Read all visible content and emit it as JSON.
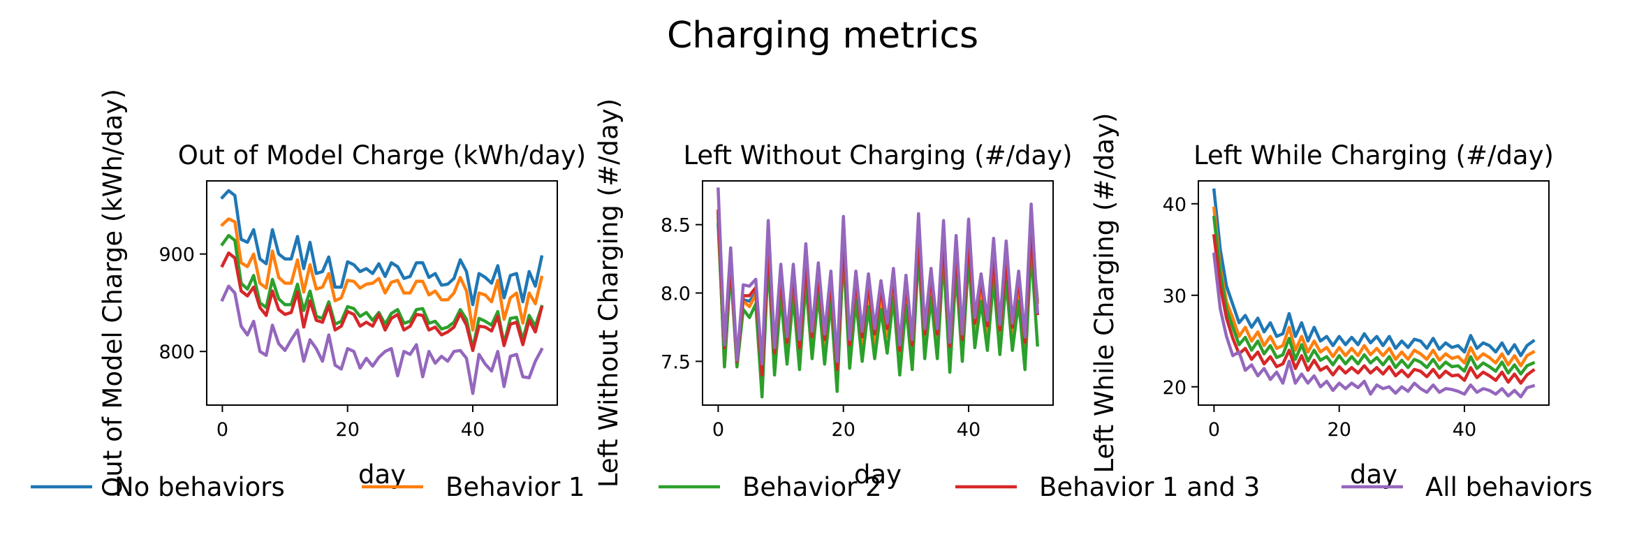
{
  "figure": {
    "title": "Charging metrics"
  },
  "legend": {
    "placement": "bottom-center",
    "entries": [
      {
        "name": "No behaviors",
        "color": "#1f77b4"
      },
      {
        "name": "Behavior 1",
        "color": "#ff7f0e"
      },
      {
        "name": "Behavior 2",
        "color": "#2ca02c"
      },
      {
        "name": "Behavior 1 and 3",
        "color": "#d62728"
      },
      {
        "name": "All behaviors",
        "color": "#9467bd"
      }
    ]
  },
  "chart_data": [
    {
      "type": "line",
      "title": "Out of Model Charge (kWh/day)",
      "xlabel": "day",
      "ylabel": "Out of Model Charge (kWh/day)",
      "xlim": [
        -2.5,
        53.5
      ],
      "ylim": [
        745,
        975
      ],
      "xticks": [
        0,
        20,
        40
      ],
      "yticks": [
        800,
        900
      ],
      "grid": false,
      "x": [
        0,
        1,
        2,
        3,
        4,
        5,
        6,
        7,
        8,
        9,
        10,
        11,
        12,
        13,
        14,
        15,
        16,
        17,
        18,
        19,
        20,
        21,
        22,
        23,
        24,
        25,
        26,
        27,
        28,
        29,
        30,
        31,
        32,
        33,
        34,
        35,
        36,
        37,
        38,
        39,
        40,
        41,
        42,
        43,
        44,
        45,
        46,
        47,
        48,
        49,
        50,
        51
      ],
      "series": [
        {
          "name": "No behaviors",
          "color": "#1f77b4",
          "values": [
            958,
            965,
            960,
            915,
            912,
            925,
            895,
            890,
            925,
            900,
            895,
            895,
            918,
            885,
            912,
            880,
            882,
            897,
            866,
            866,
            892,
            889,
            882,
            885,
            880,
            890,
            877,
            891,
            887,
            875,
            877,
            891,
            891,
            876,
            880,
            868,
            869,
            875,
            894,
            882,
            848,
            880,
            876,
            870,
            888,
            855,
            878,
            880,
            851,
            882,
            867,
            897
          ]
        },
        {
          "name": "Behavior 1",
          "color": "#ff7f0e",
          "values": [
            930,
            936,
            933,
            891,
            887,
            900,
            870,
            865,
            903,
            876,
            870,
            870,
            894,
            861,
            889,
            864,
            866,
            880,
            852,
            855,
            873,
            872,
            865,
            869,
            870,
            875,
            860,
            871,
            873,
            860,
            860,
            872,
            872,
            858,
            862,
            853,
            853,
            860,
            876,
            862,
            822,
            860,
            858,
            851,
            873,
            833,
            855,
            860,
            829,
            860,
            849,
            876
          ]
        },
        {
          "name": "Behavior 2",
          "color": "#2ca02c",
          "values": [
            910,
            919,
            914,
            870,
            864,
            878,
            850,
            845,
            874,
            854,
            848,
            848,
            869,
            842,
            862,
            836,
            834,
            851,
            828,
            831,
            846,
            844,
            836,
            840,
            832,
            840,
            828,
            839,
            843,
            829,
            831,
            843,
            844,
            829,
            831,
            823,
            825,
            830,
            843,
            833,
            803,
            834,
            831,
            827,
            841,
            808,
            834,
            835,
            812,
            837,
            826,
            846
          ]
        },
        {
          "name": "Behavior 1 and 3",
          "color": "#d62728",
          "values": [
            888,
            901,
            896,
            862,
            857,
            866,
            845,
            837,
            862,
            843,
            838,
            840,
            861,
            825,
            852,
            832,
            830,
            847,
            822,
            826,
            841,
            838,
            826,
            830,
            826,
            838,
            822,
            834,
            838,
            822,
            826,
            838,
            837,
            822,
            825,
            817,
            820,
            825,
            839,
            827,
            801,
            826,
            825,
            821,
            836,
            806,
            828,
            830,
            807,
            832,
            820,
            845
          ]
        },
        {
          "name": "All behaviors",
          "color": "#9467bd",
          "values": [
            853,
            867,
            860,
            826,
            817,
            831,
            800,
            796,
            827,
            808,
            801,
            812,
            822,
            790,
            812,
            803,
            790,
            817,
            786,
            782,
            803,
            800,
            783,
            793,
            785,
            794,
            800,
            803,
            775,
            800,
            797,
            807,
            774,
            800,
            788,
            795,
            790,
            800,
            801,
            793,
            757,
            797,
            787,
            780,
            800,
            764,
            795,
            797,
            774,
            773,
            790,
            802
          ]
        }
      ]
    },
    {
      "type": "line",
      "title": "Left Without Charging (#/day)",
      "xlabel": "day",
      "ylabel": "Left Without Charging (#/day)",
      "xlim": [
        -2.5,
        53.5
      ],
      "ylim": [
        7.18,
        8.82
      ],
      "xticks": [
        0,
        20,
        40
      ],
      "yticks": [
        7.5,
        8.0,
        8.5
      ],
      "grid": false,
      "x": [
        0,
        1,
        2,
        3,
        4,
        5,
        6,
        7,
        8,
        9,
        10,
        11,
        12,
        13,
        14,
        15,
        16,
        17,
        18,
        19,
        20,
        21,
        22,
        23,
        24,
        25,
        26,
        27,
        28,
        29,
        30,
        31,
        32,
        33,
        34,
        35,
        36,
        37,
        38,
        39,
        40,
        41,
        42,
        43,
        44,
        45,
        46,
        47,
        48,
        49,
        50,
        51
      ],
      "series": [
        {
          "name": "No behaviors",
          "color": "#1f77b4",
          "values": [
            8.5,
            7.5,
            8.18,
            7.48,
            7.95,
            7.94,
            8.0,
            7.35,
            8.31,
            7.52,
            8.07,
            7.6,
            8.06,
            7.56,
            8.17,
            7.64,
            8.09,
            7.62,
            8.04,
            7.4,
            8.35,
            7.58,
            8.05,
            7.64,
            8.01,
            7.66,
            7.98,
            7.7,
            8.06,
            7.54,
            8.02,
            7.58,
            8.38,
            7.66,
            8.07,
            7.66,
            8.35,
            7.57,
            8.25,
            7.62,
            8.35,
            7.74,
            8.04,
            7.72,
            8.2,
            7.69,
            8.19,
            7.71,
            8.04,
            7.6,
            8.41,
            7.95
          ]
        },
        {
          "name": "Behavior 1",
          "color": "#ff7f0e",
          "values": [
            8.55,
            7.46,
            8.22,
            7.46,
            7.94,
            7.9,
            7.99,
            7.33,
            8.32,
            7.52,
            8.05,
            7.58,
            8.04,
            7.55,
            8.16,
            7.62,
            8.08,
            7.6,
            8.02,
            7.38,
            8.37,
            7.57,
            8.04,
            7.62,
            8.0,
            7.63,
            7.97,
            7.68,
            8.04,
            7.52,
            8.0,
            7.56,
            8.37,
            7.64,
            8.05,
            7.64,
            8.35,
            7.55,
            8.24,
            7.61,
            8.33,
            7.72,
            8.03,
            7.7,
            8.18,
            7.67,
            8.17,
            7.69,
            8.03,
            7.58,
            8.4,
            7.93
          ]
        },
        {
          "name": "Behavior 2",
          "color": "#2ca02c",
          "values": [
            8.58,
            7.46,
            8.18,
            7.46,
            7.88,
            7.82,
            7.92,
            7.24,
            8.25,
            7.4,
            7.98,
            7.48,
            7.98,
            7.44,
            8.08,
            7.52,
            8.0,
            7.48,
            7.94,
            7.28,
            8.3,
            7.45,
            7.95,
            7.5,
            7.9,
            7.52,
            7.88,
            7.56,
            7.97,
            7.4,
            7.91,
            7.44,
            8.3,
            7.52,
            7.97,
            7.52,
            8.27,
            7.42,
            8.16,
            7.5,
            8.26,
            7.6,
            7.94,
            7.58,
            8.1,
            7.55,
            8.09,
            7.58,
            7.94,
            7.44,
            8.32,
            7.62
          ]
        },
        {
          "name": "Behavior 1 and 3",
          "color": "#d62728",
          "values": [
            8.6,
            7.6,
            8.23,
            7.5,
            7.98,
            7.98,
            8.04,
            7.4,
            8.36,
            7.56,
            8.13,
            7.64,
            8.14,
            7.6,
            8.22,
            7.68,
            8.14,
            7.66,
            8.09,
            7.44,
            8.4,
            7.62,
            8.1,
            7.68,
            8.06,
            7.7,
            8.03,
            7.74,
            8.12,
            7.58,
            8.07,
            7.62,
            8.42,
            7.7,
            8.12,
            7.7,
            8.4,
            7.61,
            8.3,
            7.66,
            8.4,
            7.78,
            8.09,
            7.76,
            8.26,
            7.73,
            8.24,
            7.75,
            8.1,
            7.64,
            8.46,
            7.85
          ]
        },
        {
          "name": "All behaviors",
          "color": "#9467bd",
          "values": [
            8.76,
            7.62,
            8.33,
            7.51,
            8.06,
            8.05,
            8.1,
            7.48,
            8.53,
            7.6,
            8.21,
            7.68,
            8.21,
            7.66,
            8.36,
            7.72,
            8.22,
            7.7,
            8.16,
            7.5,
            8.56,
            7.66,
            8.16,
            7.72,
            8.14,
            7.74,
            8.09,
            7.78,
            8.18,
            7.62,
            8.13,
            7.66,
            8.58,
            7.74,
            8.18,
            7.74,
            8.53,
            7.64,
            8.42,
            7.7,
            8.54,
            7.82,
            8.14,
            7.8,
            8.4,
            7.77,
            8.38,
            7.78,
            8.16,
            7.68,
            8.65,
            7.86
          ]
        }
      ]
    },
    {
      "type": "line",
      "title": "Left While Charging (#/day)",
      "xlabel": "day",
      "ylabel": "Left While Charging (#/day)",
      "xlim": [
        -2.5,
        53.5
      ],
      "ylim": [
        18,
        42.5
      ],
      "xticks": [
        0,
        20,
        40
      ],
      "yticks": [
        20,
        30,
        40
      ],
      "grid": false,
      "x": [
        0,
        1,
        2,
        3,
        4,
        5,
        6,
        7,
        8,
        9,
        10,
        11,
        12,
        13,
        14,
        15,
        16,
        17,
        18,
        19,
        20,
        21,
        22,
        23,
        24,
        25,
        26,
        27,
        28,
        29,
        30,
        31,
        32,
        33,
        34,
        35,
        36,
        37,
        38,
        39,
        40,
        41,
        42,
        43,
        44,
        45,
        46,
        47,
        48,
        49,
        50,
        51
      ],
      "series": [
        {
          "name": "No behaviors",
          "color": "#1f77b4",
          "values": [
            41.5,
            35.0,
            31.0,
            29.0,
            27.0,
            27.8,
            26.5,
            27.5,
            26.0,
            27.0,
            25.5,
            25.8,
            28.0,
            25.5,
            27.0,
            25.0,
            26.5,
            25.0,
            25.5,
            24.5,
            25.5,
            24.6,
            25.4,
            24.6,
            25.8,
            24.8,
            25.5,
            24.5,
            25.5,
            24.2,
            25.0,
            24.3,
            25.2,
            25.0,
            24.2,
            25.3,
            24.1,
            24.8,
            24.3,
            24.5,
            23.8,
            25.6,
            24.2,
            24.8,
            24.5,
            23.8,
            24.8,
            23.6,
            24.6,
            23.4,
            24.5,
            25.0
          ]
        },
        {
          "name": "Behavior 1",
          "color": "#ff7f0e",
          "values": [
            39.5,
            33.0,
            29.3,
            27.5,
            25.5,
            26.5,
            25.0,
            26.0,
            24.5,
            25.5,
            24.2,
            24.5,
            26.5,
            24.0,
            25.5,
            23.8,
            25.0,
            23.8,
            24.3,
            23.3,
            24.3,
            23.4,
            24.2,
            23.4,
            24.5,
            23.5,
            24.2,
            23.4,
            24.2,
            23.0,
            23.8,
            23.0,
            24.0,
            23.6,
            23.0,
            24.0,
            22.9,
            23.6,
            23.1,
            23.3,
            22.6,
            24.3,
            23.0,
            23.6,
            23.2,
            22.6,
            23.6,
            22.4,
            23.4,
            22.3,
            23.4,
            23.8
          ]
        },
        {
          "name": "Behavior 2",
          "color": "#2ca02c",
          "values": [
            38.5,
            32.5,
            28.5,
            26.5,
            24.6,
            25.4,
            24.0,
            25.0,
            23.6,
            24.5,
            23.2,
            23.5,
            25.3,
            23.0,
            24.6,
            22.8,
            24.0,
            22.9,
            23.3,
            22.4,
            23.4,
            22.5,
            23.3,
            22.5,
            23.5,
            22.6,
            23.2,
            22.4,
            23.3,
            22.1,
            22.9,
            22.1,
            23.0,
            22.7,
            22.1,
            23.0,
            22.0,
            22.7,
            22.2,
            22.3,
            21.7,
            23.3,
            22.0,
            22.6,
            22.2,
            21.7,
            22.7,
            21.5,
            22.4,
            21.4,
            22.3,
            22.6
          ]
        },
        {
          "name": "Behavior 1 and 3",
          "color": "#d62728",
          "values": [
            36.5,
            31.0,
            27.5,
            25.3,
            23.6,
            24.2,
            23.0,
            23.8,
            22.5,
            23.3,
            22.2,
            22.5,
            24.0,
            22.0,
            23.4,
            21.8,
            22.9,
            21.8,
            22.2,
            21.3,
            22.2,
            21.5,
            22.1,
            21.5,
            22.3,
            21.5,
            22.1,
            21.4,
            22.2,
            21.2,
            21.8,
            21.1,
            21.9,
            21.7,
            21.1,
            21.9,
            21.0,
            21.7,
            21.2,
            21.3,
            20.7,
            22.1,
            21.0,
            21.6,
            21.2,
            20.7,
            21.6,
            20.5,
            21.4,
            20.4,
            21.3,
            21.8
          ]
        },
        {
          "name": "All behaviors",
          "color": "#9467bd",
          "values": [
            34.5,
            28.5,
            25.5,
            23.4,
            23.8,
            21.8,
            22.4,
            21.2,
            22.0,
            20.8,
            21.6,
            20.4,
            22.8,
            20.4,
            21.4,
            20.4,
            21.2,
            20.0,
            20.6,
            19.6,
            20.4,
            19.8,
            20.4,
            19.9,
            20.6,
            19.2,
            20.2,
            19.8,
            20.0,
            19.3,
            20.0,
            19.5,
            20.4,
            19.8,
            19.4,
            20.2,
            19.4,
            19.8,
            19.7,
            19.5,
            19.2,
            20.2,
            19.4,
            19.8,
            19.6,
            19.2,
            19.8,
            19.0,
            19.6,
            18.9,
            19.9,
            20.1
          ]
        }
      ]
    }
  ]
}
